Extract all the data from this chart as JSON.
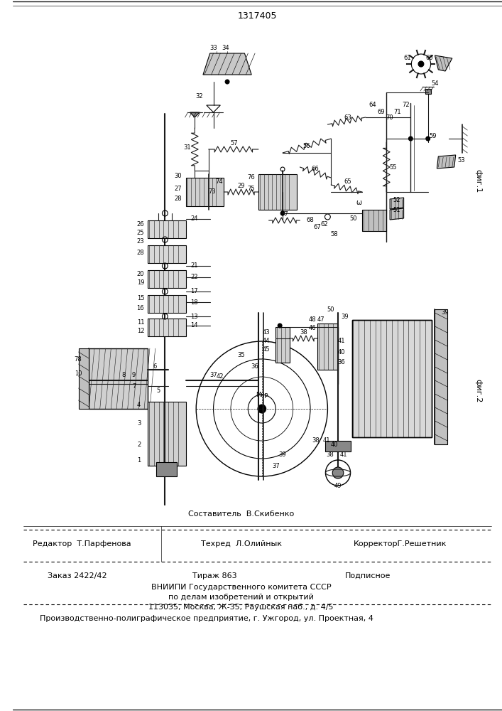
{
  "patent_number": "1317405",
  "fig1_label": "фиг.1",
  "fig2_label": "фиг.2",
  "background_color": "#ffffff",
  "line_color": "#1a1a1a",
  "footer": {
    "составитель": "Составитель  В.Скибенко",
    "редактор": "Редактор  Т.Парфенова",
    "техред": "Техред  Л.Олийнык",
    "корректор": "КорректорГ.Решетник",
    "заказ": "Заказ 2422/42",
    "тираж": "Тираж 863",
    "подписное": "Подписное",
    "вниипи": "ВНИИПИ Государственного комитета СССР",
    "делам": "по делам изобретений и открытий",
    "адрес": "113035, Москва, Ж-35, Раушская наб., д. 4/5",
    "производство": "Производственно-полиграфическое предприятие, г. Ужгород, ул. Проектная, 4"
  }
}
